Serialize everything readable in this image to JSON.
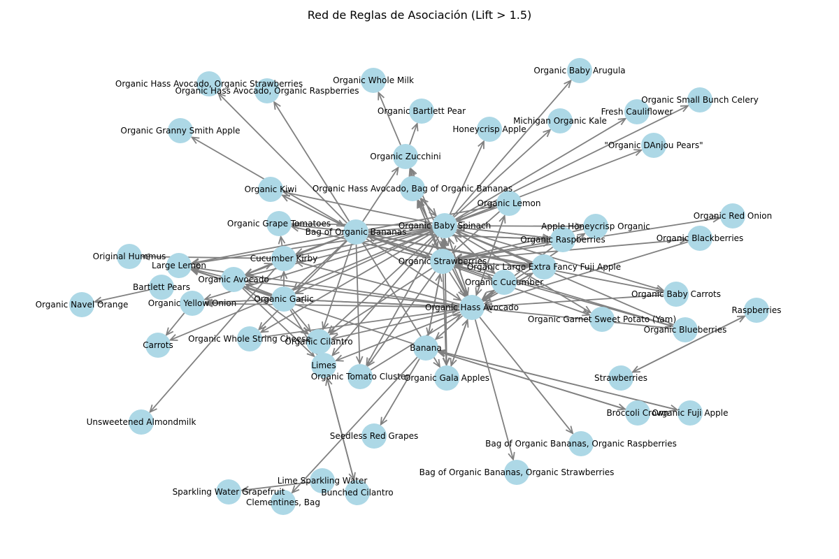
{
  "title": "Red de Reglas de Asociación (Lift > 1.5)",
  "colors": {
    "node": "#add8e6",
    "edge": "#808080",
    "text": "#000000"
  },
  "nodes": [
    {
      "id": "whole_milk",
      "label": "Organic Whole Milk"
    },
    {
      "id": "avo_straw",
      "label": "Organic Hass Avocado, Organic Strawberries"
    },
    {
      "id": "avo_rasp",
      "label": "Organic Hass Avocado, Organic Raspberries"
    },
    {
      "id": "baby_arugula",
      "label": "Organic Baby Arugula"
    },
    {
      "id": "bartlett_org",
      "label": "Organic Bartlett Pear"
    },
    {
      "id": "granny_smith",
      "label": "Organic Granny Smith Apple"
    },
    {
      "id": "small_celery",
      "label": "Organic Small Bunch Celery"
    },
    {
      "id": "fresh_cauli",
      "label": "Fresh Cauliflower"
    },
    {
      "id": "mich_kale",
      "label": "Michigan Organic Kale"
    },
    {
      "id": "honeycrisp",
      "label": "Honeycrisp Apple"
    },
    {
      "id": "danjou",
      "label": "\"Organic DAnjou Pears\""
    },
    {
      "id": "zucchini",
      "label": "Organic Zucchini"
    },
    {
      "id": "avo_bananas",
      "label": "Organic Hass Avocado, Bag of Organic Bananas"
    },
    {
      "id": "kiwi",
      "label": "Organic Kiwi"
    },
    {
      "id": "lemon",
      "label": "Organic Lemon"
    },
    {
      "id": "grape_tom",
      "label": "Organic Grape Tomatoes"
    },
    {
      "id": "bag_bananas",
      "label": "Bag of Organic Bananas"
    },
    {
      "id": "spinach",
      "label": "Organic Baby Spinach"
    },
    {
      "id": "red_onion",
      "label": "Organic Red Onion"
    },
    {
      "id": "honeycrisp_org",
      "label": "Apple Honeycrisp Organic"
    },
    {
      "id": "raspberries_org",
      "label": "Organic Raspberries"
    },
    {
      "id": "blackberries",
      "label": "Organic Blackberries"
    },
    {
      "id": "hummus",
      "label": "Original Hummus"
    },
    {
      "id": "large_lemon",
      "label": "Large Lemon"
    },
    {
      "id": "kirby",
      "label": "Cucumber Kirby"
    },
    {
      "id": "strawberries_org",
      "label": "Organic Strawberries"
    },
    {
      "id": "fuji_fancy",
      "label": "Organic Large Extra Fancy Fuji Apple"
    },
    {
      "id": "avocado_org",
      "label": "Organic Avocado"
    },
    {
      "id": "bartlett",
      "label": "Bartlett Pears"
    },
    {
      "id": "cucumber_org",
      "label": "Organic Cucumber"
    },
    {
      "id": "baby_carrots",
      "label": "Organic Baby Carrots"
    },
    {
      "id": "navel",
      "label": "Organic Navel Orange"
    },
    {
      "id": "yellow_onion",
      "label": "Organic Yellow Onion"
    },
    {
      "id": "garlic",
      "label": "Organic Garlic"
    },
    {
      "id": "hass_avo",
      "label": "Organic Hass Avocado"
    },
    {
      "id": "raspberries",
      "label": "Raspberries"
    },
    {
      "id": "sweet_potato",
      "label": "Organic Garnet Sweet Potato (Yam)"
    },
    {
      "id": "blueberries",
      "label": "Organic Blueberries"
    },
    {
      "id": "string_cheese",
      "label": "Organic Whole String Cheese"
    },
    {
      "id": "cilantro_org",
      "label": "Organic Cilantro"
    },
    {
      "id": "carrots",
      "label": "Carrots"
    },
    {
      "id": "banana",
      "label": "Banana"
    },
    {
      "id": "limes",
      "label": "Limes"
    },
    {
      "id": "tomato_cluster",
      "label": "Organic Tomato Cluster"
    },
    {
      "id": "gala",
      "label": "Organic Gala Apples"
    },
    {
      "id": "strawberries",
      "label": "Strawberries"
    },
    {
      "id": "broccoli",
      "label": "Broccoli Crown"
    },
    {
      "id": "fuji_org",
      "label": "Organic Fuji Apple"
    },
    {
      "id": "almondmilk",
      "label": "Unsweetened Almondmilk"
    },
    {
      "id": "seedless_grapes",
      "label": "Seedless Red Grapes"
    },
    {
      "id": "bb_rasp",
      "label": "Bag of Organic Bananas, Organic Raspberries"
    },
    {
      "id": "bb_straw",
      "label": "Bag of Organic Bananas, Organic Strawberries"
    },
    {
      "id": "lime_water",
      "label": "Lime Sparkling Water"
    },
    {
      "id": "grapefruit_water",
      "label": "Sparkling Water Grapefruit"
    },
    {
      "id": "bunched_cilantro",
      "label": "Bunched Cilantro"
    },
    {
      "id": "clementines",
      "label": "Clementines, Bag"
    }
  ],
  "edges": [
    [
      "bag_bananas",
      "avo_straw"
    ],
    [
      "bag_bananas",
      "avo_rasp"
    ],
    [
      "bag_bananas",
      "granny_smith"
    ],
    [
      "bag_bananas",
      "kiwi"
    ],
    [
      "bag_bananas",
      "grape_tom"
    ],
    [
      "bag_bananas",
      "kirby"
    ],
    [
      "bag_bananas",
      "avocado_org"
    ],
    [
      "bag_bananas",
      "garlic"
    ],
    [
      "bag_bananas",
      "large_lemon"
    ],
    [
      "bag_bananas",
      "string_cheese"
    ],
    [
      "bag_bananas",
      "tomato_cluster"
    ],
    [
      "bag_bananas",
      "gala"
    ],
    [
      "bag_bananas",
      "strawberries_org"
    ],
    [
      "bag_bananas",
      "hass_avo"
    ],
    [
      "bag_bananas",
      "zucchini"
    ],
    [
      "bag_bananas",
      "spinach"
    ],
    [
      "bag_bananas",
      "lemon"
    ],
    [
      "bag_bananas",
      "raspberries_org"
    ],
    [
      "bag_bananas",
      "blueberries"
    ],
    [
      "bag_bananas",
      "cucumber_org"
    ],
    [
      "bag_bananas",
      "baby_carrots"
    ],
    [
      "bag_bananas",
      "fuji_fancy"
    ],
    [
      "bag_bananas",
      "sweet_potato"
    ],
    [
      "bag_bananas",
      "cilantro_org"
    ],
    [
      "zucchini",
      "whole_milk"
    ],
    [
      "zucchini",
      "bartlett_org"
    ],
    [
      "spinach",
      "baby_arugula"
    ],
    [
      "spinach",
      "mich_kale"
    ],
    [
      "spinach",
      "honeycrisp"
    ],
    [
      "spinach",
      "fresh_cauli"
    ],
    [
      "spinach",
      "small_celery"
    ],
    [
      "spinach",
      "danjou"
    ],
    [
      "spinach",
      "avo_bananas"
    ],
    [
      "spinach",
      "kiwi"
    ],
    [
      "spinach",
      "kirby"
    ],
    [
      "spinach",
      "garlic"
    ],
    [
      "spinach",
      "avocado_org"
    ],
    [
      "spinach",
      "yellow_onion"
    ],
    [
      "spinach",
      "cilantro_org"
    ],
    [
      "spinach",
      "limes"
    ],
    [
      "spinach",
      "tomato_cluster"
    ],
    [
      "spinach",
      "gala"
    ],
    [
      "spinach",
      "hass_avo"
    ],
    [
      "spinach",
      "strawberries_org"
    ],
    [
      "spinach",
      "raspberries_org"
    ],
    [
      "spinach",
      "honeycrisp_org"
    ],
    [
      "spinach",
      "baby_carrots"
    ],
    [
      "spinach",
      "sweet_potato"
    ],
    [
      "spinach",
      "carrots"
    ],
    [
      "spinach",
      "string_cheese"
    ],
    [
      "spinach",
      "large_lemon"
    ],
    [
      "spinach",
      "cucumber_org"
    ],
    [
      "strawberries_org",
      "avo_bananas"
    ],
    [
      "strawberries_org",
      "zucchini"
    ],
    [
      "strawberries_org",
      "spinach"
    ],
    [
      "strawberries_org",
      "raspberries_org"
    ],
    [
      "strawberries_org",
      "blackberries"
    ],
    [
      "strawberries_org",
      "red_onion"
    ],
    [
      "strawberries_org",
      "fuji_fancy"
    ],
    [
      "strawberries_org",
      "hass_avo"
    ],
    [
      "strawberries_org",
      "banana"
    ],
    [
      "strawberries_org",
      "gala"
    ],
    [
      "strawberries_org",
      "tomato_cluster"
    ],
    [
      "strawberries_org",
      "cilantro_org"
    ],
    [
      "strawberries_org",
      "bag_bananas"
    ],
    [
      "strawberries_org",
      "grape_tom"
    ],
    [
      "hass_avo",
      "spinach"
    ],
    [
      "hass_avo",
      "lemon"
    ],
    [
      "hass_avo",
      "cucumber_org"
    ],
    [
      "hass_avo",
      "fuji_fancy"
    ],
    [
      "hass_avo",
      "garlic"
    ],
    [
      "hass_avo",
      "yellow_onion"
    ],
    [
      "hass_avo",
      "avocado_org"
    ],
    [
      "hass_avo",
      "kirby"
    ],
    [
      "hass_avo",
      "cilantro_org"
    ],
    [
      "hass_avo",
      "limes"
    ],
    [
      "hass_avo",
      "gala"
    ],
    [
      "hass_avo",
      "bb_rasp"
    ],
    [
      "hass_avo",
      "bb_straw"
    ],
    [
      "hass_avo",
      "banana"
    ],
    [
      "hass_avo",
      "large_lemon"
    ],
    [
      "hass_avo",
      "zucchini"
    ],
    [
      "hass_avo",
      "avo_bananas"
    ],
    [
      "hass_avo",
      "honeycrisp_org"
    ],
    [
      "garlic",
      "yellow_onion"
    ],
    [
      "garlic",
      "avocado_org"
    ],
    [
      "garlic",
      "cilantro_org"
    ],
    [
      "garlic",
      "limes"
    ],
    [
      "garlic",
      "kirby"
    ],
    [
      "garlic",
      "large_lemon"
    ],
    [
      "garlic",
      "hass_avo"
    ],
    [
      "avocado_org",
      "large_lemon"
    ],
    [
      "avocado_org",
      "kirby"
    ],
    [
      "avocado_org",
      "limes"
    ],
    [
      "avocado_org",
      "cilantro_org"
    ],
    [
      "kirby",
      "hummus"
    ],
    [
      "kirby",
      "grape_tom"
    ],
    [
      "kirby",
      "avocado_org"
    ],
    [
      "kirby",
      "almondmilk"
    ],
    [
      "bartlett",
      "navel"
    ],
    [
      "yellow_onion",
      "carrots"
    ],
    [
      "yellow_onion",
      "garlic"
    ],
    [
      "banana",
      "seedless_grapes"
    ],
    [
      "banana",
      "clementines"
    ],
    [
      "banana",
      "strawberries_org"
    ],
    [
      "banana",
      "large_lemon"
    ],
    [
      "banana",
      "broccoli"
    ],
    [
      "banana",
      "fuji_org"
    ],
    [
      "fuji_org",
      "banana"
    ],
    [
      "broccoli",
      "banana"
    ],
    [
      "strawberries",
      "raspberries"
    ],
    [
      "raspberries",
      "strawberries"
    ],
    [
      "lime_water",
      "grapefruit_water"
    ],
    [
      "bunched_cilantro",
      "limes"
    ],
    [
      "limes",
      "bunched_cilantro"
    ],
    [
      "lemon",
      "spinach"
    ],
    [
      "lemon",
      "strawberries_org"
    ],
    [
      "lemon",
      "hass_avo"
    ],
    [
      "cucumber_org",
      "spinach"
    ],
    [
      "cucumber_org",
      "strawberries_org"
    ],
    [
      "cucumber_org",
      "hass_avo"
    ],
    [
      "fuji_fancy",
      "hass_avo"
    ],
    [
      "fuji_fancy",
      "strawberries_org"
    ],
    [
      "fuji_fancy",
      "spinach"
    ],
    [
      "raspberries_org",
      "spinach"
    ],
    [
      "raspberries_org",
      "strawberries_org"
    ],
    [
      "raspberries_org",
      "hass_avo"
    ],
    [
      "raspberries_org",
      "bag_bananas"
    ],
    [
      "honeycrisp_org",
      "strawberries_org"
    ],
    [
      "avo_bananas",
      "strawberries_org"
    ],
    [
      "avo_bananas",
      "spinach"
    ],
    [
      "avo_bananas",
      "hass_avo"
    ],
    [
      "blueberries",
      "spinach"
    ],
    [
      "blueberries",
      "hass_avo"
    ],
    [
      "blueberries",
      "strawberries_org"
    ],
    [
      "kiwi",
      "bag_bananas"
    ],
    [
      "grape_tom",
      "spinach"
    ],
    [
      "string_cheese",
      "hass_avo"
    ],
    [
      "tomato_cluster",
      "hass_avo"
    ],
    [
      "gala",
      "hass_avo"
    ],
    [
      "gala",
      "spinach"
    ],
    [
      "blackberries",
      "hass_avo"
    ],
    [
      "baby_carrots",
      "hass_avo"
    ]
  ]
}
